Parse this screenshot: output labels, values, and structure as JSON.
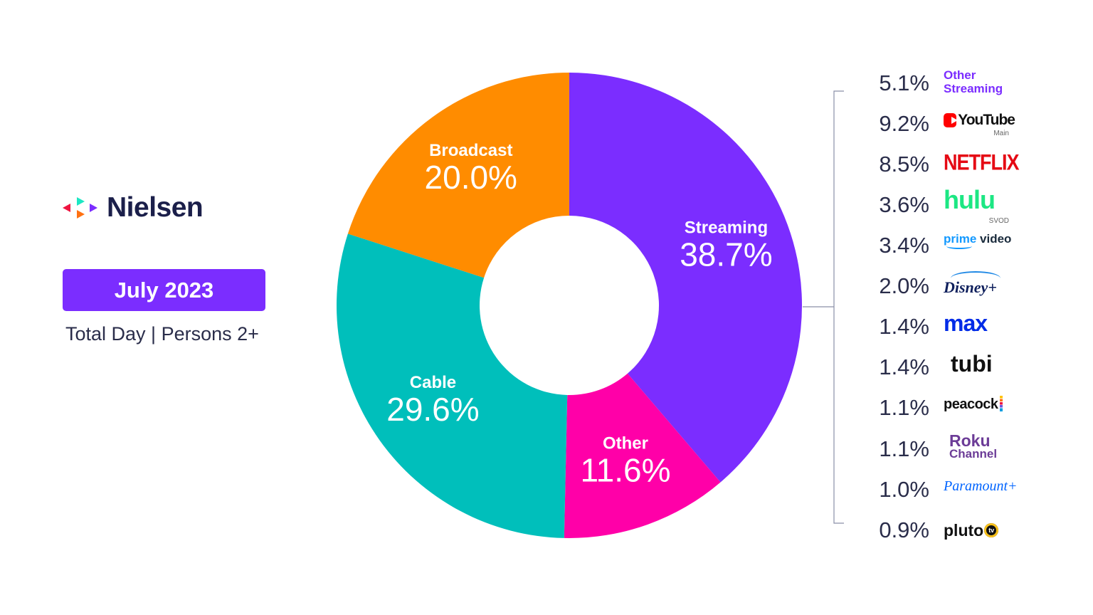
{
  "brand": {
    "name": "Nielsen",
    "logo_colors": [
      "#ef1541",
      "#ff7112",
      "#1ce7c3",
      "#7b2dff"
    ]
  },
  "period": "July 2023",
  "subtitle": "Total Day | Persons 2+",
  "colors": {
    "streaming": "#7b2dff",
    "other": "#ff00a8",
    "cable": "#00bfbb",
    "broadcast": "#ff8c00"
  },
  "chart_data": {
    "type": "pie",
    "donut": true,
    "start": "top",
    "direction": "clockwise",
    "slices": [
      {
        "label": "Streaming",
        "value": 38.7,
        "value_text": "38.7%",
        "color": "#7b2dff"
      },
      {
        "label": "Other",
        "value": 11.6,
        "value_text": "11.6%",
        "color": "#ff00a8"
      },
      {
        "label": "Cable",
        "value": 29.6,
        "value_text": "29.6%",
        "color": "#00bfbb"
      },
      {
        "label": "Broadcast",
        "value": 20.0,
        "value_text": "20.0%",
        "color": "#ff8c00"
      }
    ],
    "streaming_breakdown": [
      {
        "brand": "Other Streaming",
        "value": 5.1,
        "value_text": "5.1%"
      },
      {
        "brand": "YouTube",
        "sub": "Main",
        "value": 9.2,
        "value_text": "9.2%"
      },
      {
        "brand": "NETFLIX",
        "value": 8.5,
        "value_text": "8.5%"
      },
      {
        "brand": "hulu",
        "sub": "SVOD",
        "value": 3.6,
        "value_text": "3.6%"
      },
      {
        "brand": "prime video",
        "value": 3.4,
        "value_text": "3.4%"
      },
      {
        "brand": "Disney+",
        "value": 2.0,
        "value_text": "2.0%"
      },
      {
        "brand": "max",
        "value": 1.4,
        "value_text": "1.4%"
      },
      {
        "brand": "tubi",
        "value": 1.4,
        "value_text": "1.4%"
      },
      {
        "brand": "peacock",
        "value": 1.1,
        "value_text": "1.1%"
      },
      {
        "brand": "Roku Channel",
        "value": 1.1,
        "value_text": "1.1%"
      },
      {
        "brand": "Paramount+",
        "value": 1.0,
        "value_text": "1.0%"
      },
      {
        "brand": "pluto tv",
        "value": 0.9,
        "value_text": "0.9%"
      }
    ]
  },
  "brand_labels": {
    "other_line1": "Other",
    "other_line2": "Streaming",
    "youtube": "YouTube",
    "youtube_sub": "Main",
    "netflix": "NETFLIX",
    "hulu": "hulu",
    "hulu_sub": "SVOD",
    "prime_a": "prime ",
    "prime_b": "video",
    "disney": "Disney+",
    "max": "max",
    "tubi": "tubi",
    "peacock": "peacock",
    "roku_a": "Roku",
    "roku_b": "Channel",
    "paramount": "Paramount+",
    "pluto": "pluto",
    "pluto_tv": "tv"
  }
}
